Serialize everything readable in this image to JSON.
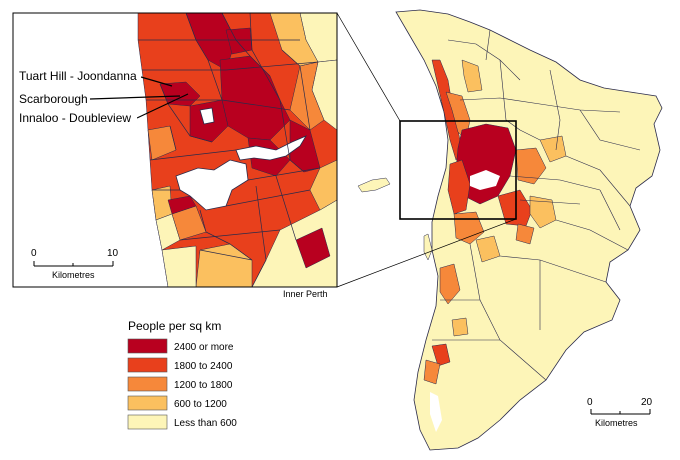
{
  "colors": {
    "c2400": "#b8001f",
    "c1800": "#e8401c",
    "c1200": "#f6883a",
    "c600": "#fbc05f",
    "c0": "#fdf5b8",
    "boundary": "#2a2a4a",
    "water": "#ffffff"
  },
  "inset": {
    "caption": "Inner Perth",
    "labels": [
      "Tuart Hill - Joondanna",
      "Scarborough",
      "Innaloo - Doubleview"
    ],
    "scale": {
      "start": "0",
      "end": "10",
      "unit": "Kilometres"
    }
  },
  "main_scale": {
    "start": "0",
    "end": "20",
    "unit": "Kilometres"
  },
  "legend": {
    "title": "People per sq km",
    "items": [
      {
        "label": "2400 or more",
        "color_key": "c2400"
      },
      {
        "label": "1800 to 2400",
        "color_key": "c1800"
      },
      {
        "label": "1200 to 1800",
        "color_key": "c1200"
      },
      {
        "label": "600 to 1200",
        "color_key": "c600"
      },
      {
        "label": "Less than 600",
        "color_key": "c0"
      }
    ]
  }
}
